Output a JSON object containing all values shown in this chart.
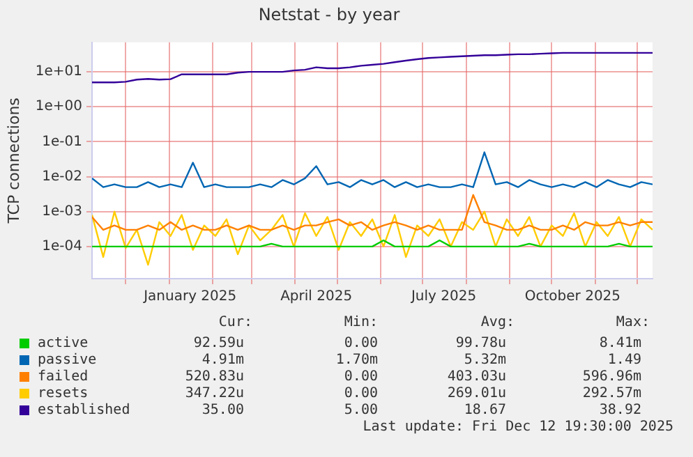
{
  "chart_data": {
    "type": "line",
    "title": "Netstat - by year",
    "ylabel": "TCP connections",
    "x": [
      "2024-11-07",
      "2024-11-15",
      "2024-11-23",
      "2024-12-01",
      "2024-12-09",
      "2024-12-17",
      "2024-12-25",
      "2025-01-02",
      "2025-01-10",
      "2025-01-18",
      "2025-01-26",
      "2025-02-03",
      "2025-02-11",
      "2025-02-19",
      "2025-02-27",
      "2025-03-07",
      "2025-03-15",
      "2025-03-23",
      "2025-03-31",
      "2025-04-08",
      "2025-04-16",
      "2025-04-24",
      "2025-05-02",
      "2025-05-10",
      "2025-05-18",
      "2025-05-26",
      "2025-06-03",
      "2025-06-11",
      "2025-06-19",
      "2025-06-27",
      "2025-07-05",
      "2025-07-13",
      "2025-07-21",
      "2025-07-29",
      "2025-08-06",
      "2025-08-14",
      "2025-08-22",
      "2025-08-30",
      "2025-09-07",
      "2025-09-15",
      "2025-09-23",
      "2025-10-01",
      "2025-10-09",
      "2025-10-17",
      "2025-10-25",
      "2025-11-02",
      "2025-11-10",
      "2025-11-18",
      "2025-11-26",
      "2025-12-04",
      "2025-12-12"
    ],
    "series": [
      {
        "name": "active",
        "color": "#00cc00",
        "values": [
          0.0001,
          0.0001,
          0.0001,
          0.0001,
          0.0001,
          0.0001,
          0.0001,
          0.0001,
          0.0001,
          0.0001,
          0.0001,
          0.0001,
          0.0001,
          0.0001,
          0.0001,
          0.0001,
          0.00012,
          0.0001,
          0.0001,
          0.0001,
          0.0001,
          0.0001,
          0.0001,
          0.0001,
          0.0001,
          0.0001,
          0.00015,
          0.0001,
          0.0001,
          0.0001,
          0.0001,
          0.00015,
          0.0001,
          0.0001,
          0.0001,
          0.0001,
          0.0001,
          0.0001,
          0.0001,
          0.00012,
          0.0001,
          0.0001,
          0.0001,
          0.0001,
          0.0001,
          0.0001,
          0.0001,
          0.00012,
          0.0001,
          0.0001,
          0.0001
        ]
      },
      {
        "name": "passive",
        "color": "#0066b3",
        "values": [
          0.009,
          0.005,
          0.006,
          0.005,
          0.005,
          0.007,
          0.005,
          0.006,
          0.005,
          0.025,
          0.005,
          0.006,
          0.005,
          0.005,
          0.005,
          0.006,
          0.005,
          0.008,
          0.006,
          0.009,
          0.02,
          0.006,
          0.007,
          0.005,
          0.008,
          0.006,
          0.008,
          0.005,
          0.007,
          0.005,
          0.006,
          0.005,
          0.005,
          0.006,
          0.005,
          0.05,
          0.006,
          0.007,
          0.005,
          0.008,
          0.006,
          0.005,
          0.006,
          0.005,
          0.007,
          0.005,
          0.008,
          0.006,
          0.005,
          0.007,
          0.006
        ]
      },
      {
        "name": "failed",
        "color": "#ff8000",
        "values": [
          0.0007,
          0.0003,
          0.0004,
          0.0003,
          0.0003,
          0.0004,
          0.0003,
          0.0005,
          0.0003,
          0.0004,
          0.0003,
          0.0003,
          0.0004,
          0.0003,
          0.0004,
          0.0003,
          0.0003,
          0.0004,
          0.0003,
          0.0004,
          0.0004,
          0.0005,
          0.0006,
          0.0004,
          0.0005,
          0.0003,
          0.0004,
          0.0005,
          0.0004,
          0.0003,
          0.0004,
          0.0003,
          0.0003,
          0.0003,
          0.003,
          0.0005,
          0.0004,
          0.0003,
          0.0003,
          0.0004,
          0.0003,
          0.0003,
          0.0004,
          0.0003,
          0.0005,
          0.0004,
          0.0004,
          0.0005,
          0.0004,
          0.0005,
          0.0005
        ]
      },
      {
        "name": "resets",
        "color": "#ffcc00",
        "values": [
          0.0008,
          5e-05,
          0.001,
          9e-05,
          0.0003,
          3e-05,
          0.0005,
          0.0002,
          0.0008,
          8e-05,
          0.0004,
          0.0002,
          0.0006,
          6e-05,
          0.0004,
          0.00015,
          0.0003,
          0.0008,
          0.0001,
          0.0009,
          0.0002,
          0.0007,
          8e-05,
          0.0005,
          0.0002,
          0.0006,
          0.0001,
          0.0008,
          5e-05,
          0.0004,
          0.0002,
          0.0006,
          0.0001,
          0.0005,
          0.0003,
          0.001,
          0.0001,
          0.0006,
          0.0002,
          0.0007,
          0.0001,
          0.0004,
          0.0002,
          0.0009,
          0.0001,
          0.0005,
          0.0002,
          0.0007,
          0.0001,
          0.0006,
          0.0003
        ]
      },
      {
        "name": "established",
        "color": "#330099",
        "values": [
          5,
          5,
          5,
          5.2,
          6,
          6.3,
          6,
          6.2,
          8.5,
          8.5,
          8.5,
          8.5,
          8.5,
          9.5,
          10,
          10,
          10,
          10,
          11,
          11.5,
          13.5,
          12.7,
          12.7,
          13.5,
          15,
          16,
          17,
          19,
          21,
          23,
          25,
          26,
          27,
          28,
          29,
          30,
          30,
          31,
          32,
          32,
          33,
          34,
          35,
          35,
          35,
          35,
          35,
          35,
          35,
          35,
          35
        ]
      }
    ],
    "log": true,
    "ylim": [
      1.2e-05,
      70
    ],
    "yticks": [
      {
        "value": 0.0001,
        "label": "1e-04"
      },
      {
        "value": 0.001,
        "label": "1e-03"
      },
      {
        "value": 0.01,
        "label": "1e-02"
      },
      {
        "value": 0.1,
        "label": "1e-01"
      },
      {
        "value": 1,
        "label": "1e+00"
      },
      {
        "value": 10,
        "label": "1e+01"
      }
    ],
    "xlim": [
      "2024-11-07",
      "2025-12-12"
    ],
    "xticks": [
      {
        "value": "2024-12-01",
        "label": null
      },
      {
        "value": "2025-01-01",
        "label": null
      },
      {
        "value": "2025-01-16",
        "label": "January 2025"
      },
      {
        "value": "2025-02-01",
        "label": null
      },
      {
        "value": "2025-03-01",
        "label": null
      },
      {
        "value": "2025-04-01",
        "label": null
      },
      {
        "value": "2025-04-16",
        "label": "April 2025"
      },
      {
        "value": "2025-05-01",
        "label": null
      },
      {
        "value": "2025-06-01",
        "label": null
      },
      {
        "value": "2025-07-01",
        "label": null
      },
      {
        "value": "2025-07-16",
        "label": "July 2025"
      },
      {
        "value": "2025-08-01",
        "label": null
      },
      {
        "value": "2025-09-01",
        "label": null
      },
      {
        "value": "2025-10-01",
        "label": null
      },
      {
        "value": "2025-10-16",
        "label": "October 2025"
      },
      {
        "value": "2025-11-01",
        "label": null
      },
      {
        "value": "2025-12-01",
        "label": null
      }
    ],
    "grid": true,
    "legend": "bottom",
    "marker": "none",
    "line_style": "solid",
    "annotations": [
      "Cur:",
      "Min:",
      "Avg:",
      "Max:",
      "92.59u",
      "0.00",
      "99.78u",
      "8.41m",
      "4.91m",
      "1.70m",
      "5.32m",
      "1.49",
      "520.83u",
      "0.00",
      "403.03u",
      "596.96m",
      "347.22u",
      "0.00",
      "269.01u",
      "292.57m",
      "35.00",
      "5.00",
      "18.67",
      "38.92",
      "Last update: Fri Dec 12 19:30:00 2025"
    ]
  }
}
